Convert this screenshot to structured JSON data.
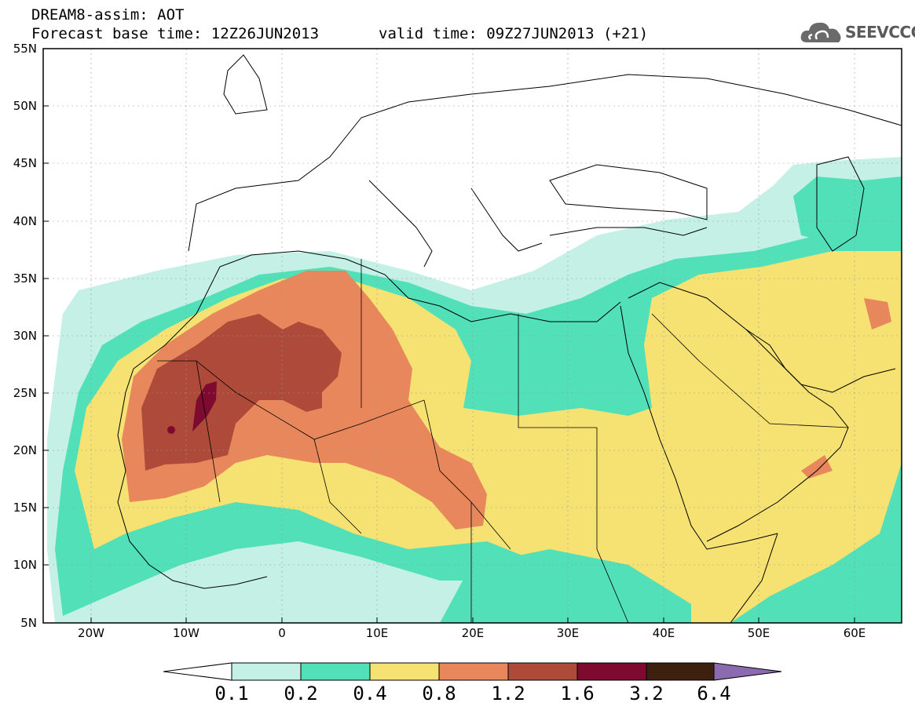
{
  "header": {
    "title": "DREAM8-assim: AOT",
    "base_time": "Forecast base time: 12Z26JUN2013",
    "valid_time": "valid time: 09Z27JUN2013 (+21)"
  },
  "logo": {
    "text": "SEEVCCC",
    "icon": "cloud-icon"
  },
  "axes": {
    "lat_labels": [
      "55N",
      "50N",
      "45N",
      "40N",
      "35N",
      "30N",
      "25N",
      "20N",
      "15N",
      "10N",
      "5N"
    ],
    "lon_labels": [
      "20W",
      "10W",
      "0",
      "10E",
      "20E",
      "30E",
      "40E",
      "50E",
      "60E"
    ]
  },
  "colorbar": {
    "labels": [
      "0.1",
      "0.2",
      "0.4",
      "0.8",
      "1.2",
      "1.6",
      "3.2",
      "6.4"
    ],
    "colors": [
      "#ffffff",
      "#c4f0e6",
      "#52e0b8",
      "#f5e272",
      "#e8875c",
      "#ad4a3a",
      "#7f0a30",
      "#3d2010",
      "#8b6ab0"
    ]
  },
  "colors": {
    "aot_0_1": "#c4f0e6",
    "aot_0_2": "#52e0b8",
    "aot_0_4": "#f5e272",
    "aot_0_8": "#e8875c",
    "aot_1_2": "#ad4a3a",
    "aot_1_6": "#7f0a30"
  }
}
